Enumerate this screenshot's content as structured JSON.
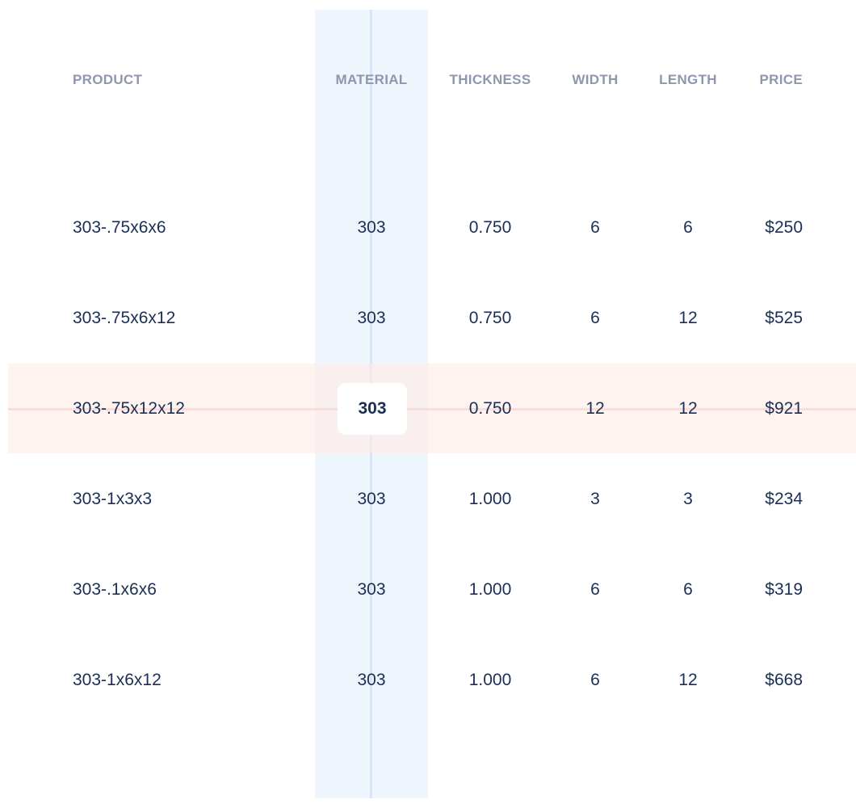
{
  "table": {
    "headers": [
      "PRODUCT",
      "MATERIAL",
      "THICKNESS",
      "WIDTH",
      "LENGTH",
      "PRICE"
    ],
    "rows": [
      [
        "303-.75x6x6",
        "303",
        "0.750",
        "6",
        "6",
        "$250"
      ],
      [
        "303-.75x6x12",
        "303",
        "0.750",
        "6",
        "12",
        "$525"
      ],
      [
        "303-.75x12x12",
        "303",
        "0.750",
        "12",
        "12",
        "$921"
      ],
      [
        "303-1x3x3",
        "303",
        "1.000",
        "3",
        "3",
        "$234"
      ],
      [
        "303-.1x6x6",
        "303",
        "1.000",
        "6",
        "6",
        "$319"
      ],
      [
        "303-1x6x12",
        "303",
        "1.000",
        "6",
        "12",
        "$668"
      ]
    ],
    "highlighted_row": 2,
    "highlighted_column": 1
  },
  "colors": {
    "text": "#1b2f55",
    "header": "#8e97ad",
    "column_highlight": "#eff5fd",
    "row_highlight": "#fff4f2"
  }
}
